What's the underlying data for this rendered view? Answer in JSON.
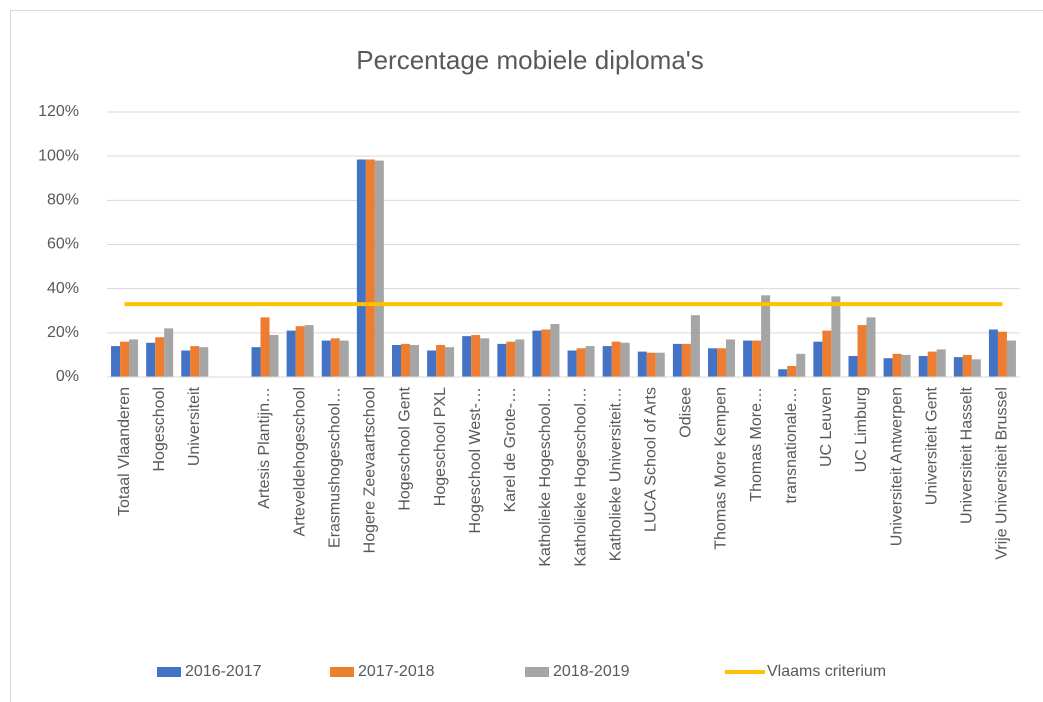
{
  "chart_data": {
    "type": "bar",
    "title": "Percentage mobiele diploma's",
    "categories": [
      "Totaal Vlaanderen",
      "Hogeschool",
      "Universiteit",
      null,
      "Artesis Plantijn…",
      "Arteveldehogeschool",
      "Erasmushogeschool…",
      "Hogere Zeevaartschool",
      "Hogeschool Gent",
      "Hogeschool PXL",
      "Hogeschool West-…",
      "Karel de Grote-…",
      "Katholieke Hogeschool…",
      "Katholieke Hogeschool…",
      "Katholieke Universiteit…",
      "LUCA School of Arts",
      "Odisee",
      "Thomas More Kempen",
      "Thomas More…",
      "transnationale…",
      "UC Leuven",
      "UC Limburg",
      "Universiteit Antwerpen",
      "Universiteit Gent",
      "Universiteit Hasselt",
      "Vrije Universiteit Brussel"
    ],
    "series": [
      {
        "name": "2016-2017",
        "color": "#4472c4",
        "type": "bar",
        "values": [
          14,
          15.5,
          12,
          null,
          13.5,
          21,
          16.5,
          98.5,
          14.5,
          12,
          18.5,
          15,
          21,
          12,
          14,
          11.5,
          15,
          13,
          16.5,
          3.5,
          16,
          9.5,
          8.5,
          9.5,
          9,
          21.5
        ]
      },
      {
        "name": "2017-2018",
        "color": "#ed7d31",
        "type": "bar",
        "values": [
          16,
          18,
          14,
          null,
          27,
          23,
          17.5,
          98.5,
          15,
          14.5,
          19,
          16,
          21.5,
          13,
          16,
          11,
          15,
          13,
          16.5,
          5,
          21,
          23.5,
          10.5,
          11.5,
          10,
          20.5
        ]
      },
      {
        "name": "2018-2019",
        "color": "#a5a5a5",
        "type": "bar",
        "values": [
          17,
          22,
          13.5,
          null,
          19,
          23.5,
          16.5,
          98,
          14.5,
          13.5,
          17.5,
          17,
          24,
          14,
          15.5,
          11,
          28,
          17,
          37,
          10.5,
          36.5,
          27,
          10,
          12.5,
          8,
          16.5
        ]
      },
      {
        "name": "Vlaams criterium",
        "color": "#ffc000",
        "type": "line",
        "values": [
          33,
          33,
          33,
          33,
          33,
          33,
          33,
          33,
          33,
          33,
          33,
          33,
          33,
          33,
          33,
          33,
          33,
          33,
          33,
          33,
          33,
          33,
          33,
          33,
          33,
          33
        ]
      }
    ],
    "ylim": [
      0,
      120
    ],
    "yticks": [
      {
        "value": 0,
        "label": "0%"
      },
      {
        "value": 20,
        "label": "20%"
      },
      {
        "value": 40,
        "label": "40%"
      },
      {
        "value": 60,
        "label": "60%"
      },
      {
        "value": 80,
        "label": "80%"
      },
      {
        "value": 100,
        "label": "100%"
      },
      {
        "value": 120,
        "label": "120%"
      }
    ],
    "grid": true,
    "legend": "bottom"
  }
}
